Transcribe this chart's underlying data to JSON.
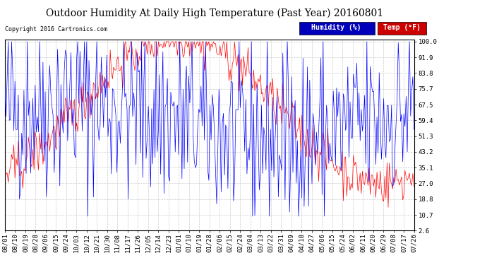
{
  "title": "Outdoor Humidity At Daily High Temperature (Past Year) 20160801",
  "copyright": "Copyright 2016 Cartronics.com",
  "ylabel_right_ticks": [
    2.6,
    10.7,
    18.8,
    27.0,
    35.1,
    43.2,
    51.3,
    59.4,
    67.5,
    75.7,
    83.8,
    91.9,
    100.0
  ],
  "x_labels": [
    "08/01",
    "08/10",
    "08/19",
    "08/28",
    "09/06",
    "09/15",
    "09/24",
    "10/03",
    "10/12",
    "10/21",
    "10/30",
    "11/08",
    "11/17",
    "11/26",
    "12/05",
    "12/14",
    "12/23",
    "01/01",
    "01/10",
    "01/19",
    "01/28",
    "02/06",
    "02/15",
    "02/24",
    "03/04",
    "03/13",
    "03/22",
    "03/31",
    "04/09",
    "04/18",
    "04/27",
    "05/06",
    "05/15",
    "05/24",
    "06/02",
    "06/11",
    "06/20",
    "06/29",
    "07/08",
    "07/17",
    "07/26"
  ],
  "legend_humidity_color": "#0000ff",
  "legend_temp_color": "#ff0000",
  "legend_blue_bg": "#0000bb",
  "legend_red_bg": "#cc0000",
  "background_color": "#ffffff",
  "grid_color": "#cccccc",
  "title_fontsize": 10,
  "copyright_fontsize": 6,
  "tick_fontsize": 6.5,
  "legend_fontsize": 7,
  "num_points": 366,
  "y_min": 2.6,
  "y_max": 100.0
}
